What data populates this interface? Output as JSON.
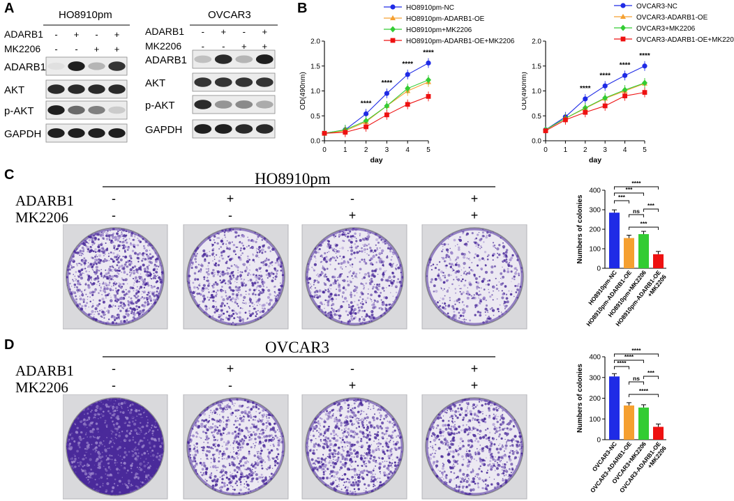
{
  "panel_labels": {
    "a": "A",
    "b": "B",
    "c": "C",
    "d": "D"
  },
  "colors": {
    "nc": "#1f2be6",
    "oe": "#f5a030",
    "mk": "#33cc33",
    "combo": "#ee1111",
    "stain_dark": "#4a2a9a",
    "stain_light": "#9c86cc",
    "band": "#1a1a1a"
  },
  "western": {
    "ho8910": {
      "cell": "HO8910pm",
      "row_labels": [
        "ADARB1",
        "MK2206"
      ],
      "adarb1_signs": [
        "-",
        "+",
        "-",
        "+"
      ],
      "mk2206_signs": [
        "-",
        "-",
        "+",
        "+"
      ],
      "blots": [
        "ADARB1",
        "AKT",
        "p-AKT",
        "GAPDH"
      ],
      "intensities": [
        [
          0.05,
          0.95,
          0.25,
          0.85
        ],
        [
          0.9,
          0.9,
          0.9,
          0.9
        ],
        [
          0.95,
          0.6,
          0.5,
          0.15
        ],
        [
          0.95,
          0.95,
          0.95,
          0.95
        ]
      ]
    },
    "ovcar3": {
      "cell": "OVCAR3",
      "row_labels": [
        "ADARB1",
        "MK2206"
      ],
      "adarb1_signs": [
        "-",
        "+",
        "-",
        "+"
      ],
      "mk2206_signs": [
        "-",
        "-",
        "+",
        "+"
      ],
      "blots": [
        "ADARB1",
        "AKT",
        "p-AKT",
        "GAPDH"
      ],
      "intensities": [
        [
          0.2,
          0.9,
          0.25,
          0.95
        ],
        [
          0.85,
          0.85,
          0.85,
          0.85
        ],
        [
          0.9,
          0.4,
          0.45,
          0.3
        ],
        [
          0.95,
          0.95,
          0.9,
          0.9
        ]
      ]
    }
  },
  "chart_data": [
    {
      "type": "line",
      "x": [
        0,
        1,
        2,
        3,
        4,
        5
      ],
      "xlabel": "day",
      "ylabel": "OD(490nm)",
      "ylim": [
        0,
        2.0
      ],
      "yticks": [
        "0.0",
        "0.5",
        "1.0",
        "1.5",
        "2.0"
      ],
      "series": [
        {
          "name": "HO8910pm-NC",
          "values": [
            0.15,
            0.22,
            0.54,
            0.95,
            1.33,
            1.56
          ],
          "color": "nc",
          "marker": "circle"
        },
        {
          "name": "HO8910pm-ADARB1-OE",
          "values": [
            0.15,
            0.2,
            0.38,
            0.7,
            1.0,
            1.18
          ],
          "color": "oe",
          "marker": "triangle"
        },
        {
          "name": "HO8910pm+MK2206",
          "values": [
            0.15,
            0.22,
            0.4,
            0.7,
            1.05,
            1.22
          ],
          "color": "mk",
          "marker": "diamond"
        },
        {
          "name": "HO8910pm-ADARB1-OE+MK2206",
          "values": [
            0.15,
            0.17,
            0.28,
            0.52,
            0.73,
            0.89
          ],
          "color": "combo",
          "marker": "square"
        }
      ],
      "annotations": [
        {
          "x": 2,
          "text": "****"
        },
        {
          "x": 3,
          "text": "****"
        },
        {
          "x": 4,
          "text": "****"
        },
        {
          "x": 5,
          "text": "****"
        }
      ],
      "legend_position": "top"
    },
    {
      "type": "line",
      "x": [
        0,
        1,
        2,
        3,
        4,
        5
      ],
      "xlabel": "day",
      "ylabel": "OD(490nm)",
      "ylim": [
        0,
        2.0
      ],
      "yticks": [
        "0.0",
        "0.5",
        "1.0",
        "1.5",
        "2.0"
      ],
      "series": [
        {
          "name": "OVCAR3-NC",
          "values": [
            0.22,
            0.48,
            0.84,
            1.1,
            1.31,
            1.5
          ],
          "color": "nc",
          "marker": "circle"
        },
        {
          "name": "OVCAR3-ADARB1-OE",
          "values": [
            0.22,
            0.45,
            0.65,
            0.85,
            1.0,
            1.15
          ],
          "color": "oe",
          "marker": "triangle"
        },
        {
          "name": "OVCAR3+MK2206",
          "values": [
            0.22,
            0.45,
            0.66,
            0.86,
            1.02,
            1.16
          ],
          "color": "mk",
          "marker": "diamond"
        },
        {
          "name": "OVCAR3-ADARB1-OE+MK2206",
          "values": [
            0.2,
            0.42,
            0.57,
            0.7,
            0.9,
            0.97
          ],
          "color": "combo",
          "marker": "square"
        }
      ],
      "annotations": [
        {
          "x": 2,
          "text": "****"
        },
        {
          "x": 3,
          "text": "****"
        },
        {
          "x": 4,
          "text": "****"
        },
        {
          "x": 5,
          "text": "****"
        }
      ],
      "legend_position": "top"
    },
    {
      "type": "bar",
      "categories": [
        "HO8910pm-NC",
        "HO8910pm-ADARB1-OE",
        "HO8910pm+MK2206",
        "HO8910pm-ADARB1-OE\n+MK2206"
      ],
      "values": [
        285,
        155,
        175,
        72
      ],
      "colors": [
        "nc",
        "oe",
        "mk",
        "combo"
      ],
      "ylabel": "Numbers of colonies",
      "ylim": [
        0,
        400
      ],
      "yticks": [
        "0",
        "100",
        "200",
        "300",
        "400"
      ],
      "comparisons": [
        {
          "a": 0,
          "b": 1,
          "text": "***"
        },
        {
          "a": 0,
          "b": 2,
          "text": "***"
        },
        {
          "a": 0,
          "b": 3,
          "text": "****"
        },
        {
          "a": 1,
          "b": 2,
          "text": "ns"
        },
        {
          "a": 1,
          "b": 3,
          "text": "***"
        },
        {
          "a": 2,
          "b": 3,
          "text": "***"
        }
      ]
    },
    {
      "type": "bar",
      "categories": [
        "OVCAR3-NC",
        "OVCAR3-ADARB1-OE",
        "OVCAR3+MK2206",
        "OVCAR3-ADARB1-OE\n+MK2206"
      ],
      "values": [
        305,
        165,
        155,
        62
      ],
      "colors": [
        "nc",
        "oe",
        "mk",
        "combo"
      ],
      "ylabel": "Numbers of colonies",
      "ylim": [
        0,
        400
      ],
      "yticks": [
        "0",
        "100",
        "200",
        "300",
        "400"
      ],
      "comparisons": [
        {
          "a": 0,
          "b": 1,
          "text": "****"
        },
        {
          "a": 0,
          "b": 2,
          "text": "****"
        },
        {
          "a": 0,
          "b": 3,
          "text": "****"
        },
        {
          "a": 1,
          "b": 2,
          "text": "ns"
        },
        {
          "a": 1,
          "b": 3,
          "text": "****"
        },
        {
          "a": 2,
          "b": 3,
          "text": "***"
        }
      ]
    }
  ],
  "colony": {
    "c": {
      "title": "HO8910pm",
      "row_labels": [
        "ADARB1",
        "MK2206"
      ],
      "adarb1_signs": [
        "-",
        "+",
        "-",
        "+"
      ],
      "mk2206_signs": [
        "-",
        "-",
        "+",
        "+"
      ],
      "densities": [
        0.78,
        0.42,
        0.45,
        0.22
      ]
    },
    "d": {
      "title": "OVCAR3",
      "row_labels": [
        "ADARB1",
        "MK2206"
      ],
      "adarb1_signs": [
        "-",
        "+",
        "-",
        "+"
      ],
      "mk2206_signs": [
        "-",
        "-",
        "+",
        "+"
      ],
      "densities": [
        0.92,
        0.62,
        0.66,
        0.5
      ]
    }
  }
}
